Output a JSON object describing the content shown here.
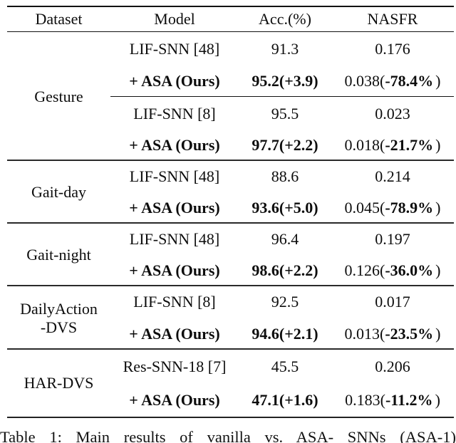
{
  "table": {
    "headers": [
      "Dataset",
      "Model",
      "Acc.(%)",
      "NASFR"
    ],
    "sections": [
      {
        "dataset_lines": [
          "Gesture"
        ],
        "rows": [
          {
            "model": "LIF-SNN [48]",
            "acc": "91.3",
            "nasfr": "0.176"
          },
          {
            "model": "+ ASA (Ours)",
            "acc": "95.2(+3.9)",
            "nasfr_pre": "0.038(",
            "nasfr_bold": "-78.4%",
            "nasfr_close": ")"
          },
          {
            "model": "LIF-SNN [8]",
            "acc": "95.5",
            "nasfr": "0.023"
          },
          {
            "model": "+ ASA (Ours)",
            "acc": "97.7(+2.2)",
            "nasfr_pre": "0.018(",
            "nasfr_bold": "-21.7%",
            "nasfr_close": ")"
          }
        ]
      },
      {
        "dataset_lines": [
          "Gait-day"
        ],
        "rows": [
          {
            "model": "LIF-SNN [48]",
            "acc": "88.6",
            "nasfr": "0.214"
          },
          {
            "model": "+ ASA (Ours)",
            "acc": "93.6(+5.0)",
            "nasfr_pre": "0.045(",
            "nasfr_bold": "-78.9%",
            "nasfr_close": ")"
          }
        ]
      },
      {
        "dataset_lines": [
          "Gait-night"
        ],
        "rows": [
          {
            "model": "LIF-SNN [48]",
            "acc": "96.4",
            "nasfr": "0.197"
          },
          {
            "model": "+ ASA (Ours)",
            "acc": "98.6(+2.2)",
            "nasfr_pre": "0.126(",
            "nasfr_bold": "-36.0%",
            "nasfr_close": ")"
          }
        ]
      },
      {
        "dataset_lines": [
          "DailyAction",
          "-DVS"
        ],
        "rows": [
          {
            "model": "LIF-SNN [8]",
            "acc": "92.5",
            "nasfr": "0.017"
          },
          {
            "model": "+ ASA (Ours)",
            "acc": "94.6(+2.1)",
            "nasfr_pre": "0.013(",
            "nasfr_bold": "-23.5%",
            "nasfr_close": ")"
          }
        ]
      },
      {
        "dataset_lines": [
          "HAR-DVS"
        ],
        "rows": [
          {
            "model": "Res-SNN-18 [7]",
            "acc": "45.5",
            "nasfr": "0.206"
          },
          {
            "model": "+ ASA (Ours)",
            "acc": "47.1(+1.6)",
            "nasfr_pre": "0.183(",
            "nasfr_bold": "-11.2%",
            "nasfr_close": ")"
          }
        ]
      }
    ]
  },
  "caption": "Table 1: Main results of vanilla vs. ASA- SNNs (ASA-1)"
}
